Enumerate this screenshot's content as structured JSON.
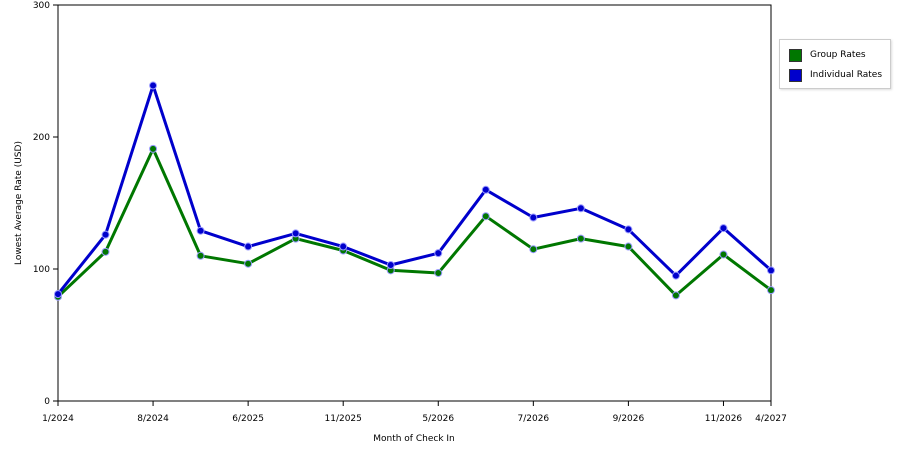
{
  "chart_data": {
    "type": "line",
    "xlabel": "Month of Check In",
    "ylabel": "Lowest Average Rate (USD)",
    "ylim": [
      0,
      300
    ],
    "yticks": [
      0,
      100,
      200,
      300
    ],
    "grid": "horizontal dashed",
    "legend_position": "right",
    "x_tick_labels": [
      "1/2024",
      "8/2024",
      "6/2025",
      "11/2025",
      "5/2026",
      "7/2026",
      "9/2026",
      "11/2026",
      "4/2027"
    ],
    "x_tick_indices": [
      0,
      2,
      4,
      6,
      8,
      10,
      12,
      14,
      15
    ],
    "point_count": 16,
    "series": [
      {
        "name": "Group Rates",
        "color": "#007700",
        "values": [
          79,
          113,
          191,
          110,
          104,
          123,
          114,
          99,
          97,
          140,
          115,
          123,
          117,
          80,
          111,
          84
        ]
      },
      {
        "name": "Individual Rates",
        "color": "#0000cc",
        "values": [
          81,
          126,
          239,
          129,
          117,
          127,
          117,
          103,
          112,
          160,
          139,
          146,
          130,
          95,
          131,
          99
        ]
      }
    ]
  }
}
